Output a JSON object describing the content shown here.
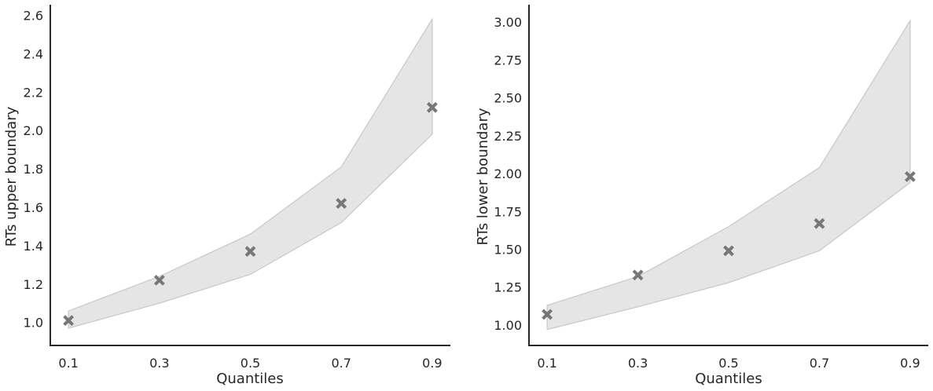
{
  "chart_data": [
    {
      "type": "line",
      "xlabel": "Quantiles",
      "ylabel": "RTs upper boundary",
      "x": [
        0.1,
        0.3,
        0.5,
        0.7,
        0.9
      ],
      "xticks": [
        "0.1",
        "0.3",
        "0.5",
        "0.7",
        "0.9"
      ],
      "xlim": [
        0.06,
        0.94
      ],
      "yticks": [
        "1.0",
        "1.2",
        "1.4",
        "1.6",
        "1.8",
        "2.0",
        "2.2",
        "2.4",
        "2.6"
      ],
      "ylim": [
        0.88,
        2.655
      ],
      "series": [
        {
          "marker": "x",
          "values": [
            1.01,
            1.22,
            1.37,
            1.62,
            2.12
          ]
        }
      ],
      "band": {
        "lower": [
          0.97,
          1.1,
          1.25,
          1.52,
          1.98
        ],
        "upper": [
          1.06,
          1.24,
          1.46,
          1.81,
          2.58
        ]
      },
      "grid": false,
      "colors": {
        "marker": "#777777",
        "band": "#d3d3d3",
        "axis": "#262626"
      }
    },
    {
      "type": "line",
      "xlabel": "Quantiles",
      "ylabel": "RTs lower boundary",
      "x": [
        0.1,
        0.3,
        0.5,
        0.7,
        0.9
      ],
      "xticks": [
        "0.1",
        "0.3",
        "0.5",
        "0.7",
        "0.9"
      ],
      "xlim": [
        0.06,
        0.94
      ],
      "yticks": [
        "1.00",
        "1.25",
        "1.50",
        "1.75",
        "2.00",
        "2.25",
        "2.50",
        "2.75",
        "3.00"
      ],
      "ylim": [
        0.865,
        3.115
      ],
      "series": [
        {
          "marker": "x",
          "values": [
            1.07,
            1.33,
            1.49,
            1.67,
            1.98
          ]
        }
      ],
      "band": {
        "lower": [
          0.97,
          1.12,
          1.28,
          1.49,
          1.94
        ],
        "upper": [
          1.13,
          1.32,
          1.65,
          2.04,
          3.01
        ]
      },
      "grid": false,
      "colors": {
        "marker": "#777777",
        "band": "#d3d3d3",
        "axis": "#262626"
      }
    }
  ]
}
